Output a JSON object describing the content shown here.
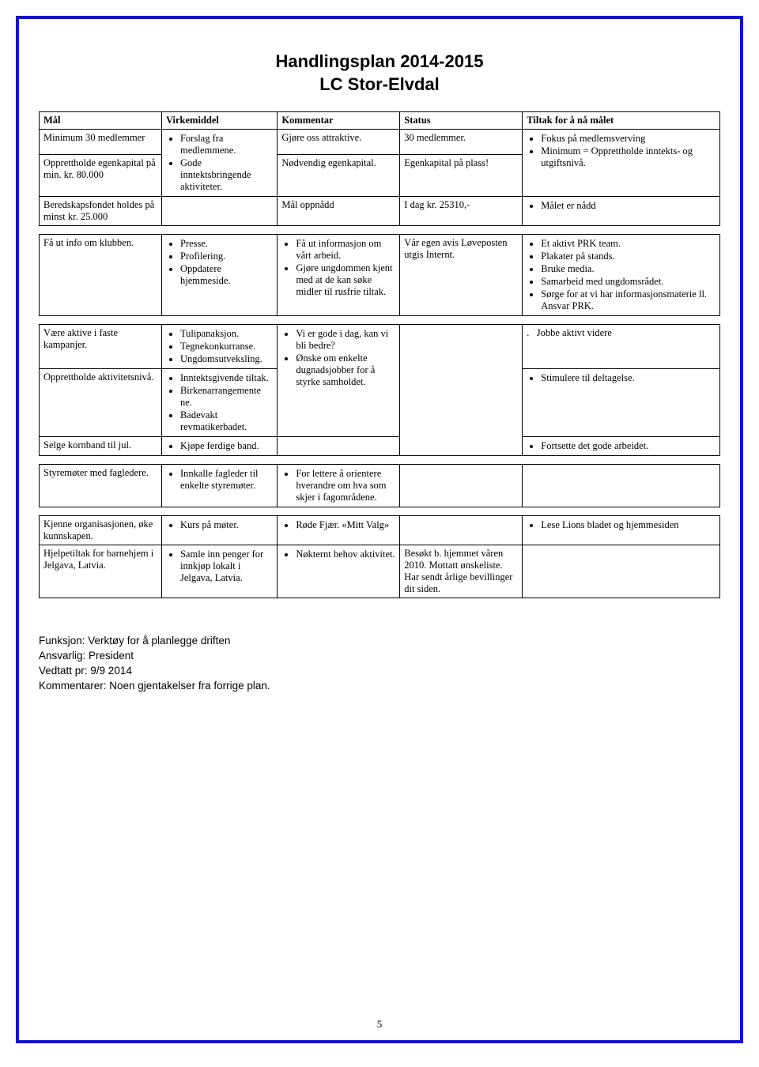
{
  "doc": {
    "titleLine1": "Handlingsplan 2014-2015",
    "titleLine2": "LC Stor-Elvdal",
    "pageNumber": "5"
  },
  "headers": {
    "mal": "Mål",
    "virkemiddel": "Virkemiddel",
    "kommentar": "Kommentar",
    "status": "Status",
    "tiltak": "Tiltak for å nå målet"
  },
  "t1": {
    "r1": {
      "mal": "Minimum 30 medlemmer",
      "v1": "Forslag fra medlemmene.",
      "kom": "Gjøre oss attraktive.",
      "stat": "30 medlemmer.",
      "t1": "Fokus på medlemsverving"
    },
    "r2": {
      "mal": "Opprettholde egenkapital på min. kr. 80.000",
      "v1": "Gode inntektsbringende aktiviteter.",
      "kom": "Nødvendig egenkapital.",
      "stat": "Egenkapital på plass!",
      "t1": "Minimum = Opprettholde inntekts- og utgiftsnivå."
    },
    "r3": {
      "mal": "Beredskapsfondet holdes på minst kr. 25.000",
      "kom": "Mål oppnådd",
      "stat": "I dag kr. 25310,-",
      "t1": "Målet er nådd"
    }
  },
  "t2": {
    "r1": {
      "mal": "Få ut info om klubben.",
      "v": [
        "Presse.",
        "Profilering.",
        "Oppdatere hjemmeside."
      ],
      "k": [
        "Få ut informasjon om vårt arbeid.",
        "Gjøre ungdommen kjent med at de kan søke midler til rusfrie tiltak."
      ],
      "stat": "Vår egen avis Løveposten utgis Internt.",
      "t": [
        "Et aktivt PRK team.",
        "Plakater på stands.",
        "Bruke media.",
        "Samarbeid med ungdomsrådet.",
        "Sørge for at vi har informasjonsmaterie ll. Ansvar PRK."
      ]
    }
  },
  "t3": {
    "r1": {
      "mal": "Være aktive i faste kampanjer.",
      "v": [
        "Tulipanaksjon.",
        "Tegnekonkurranse.",
        "Ungdomsutveksling."
      ],
      "k": [
        "Vi er gode i dag, kan vi bli bedre?"
      ],
      "tPrefix": ".",
      "t": "Jobbe aktivt videre"
    },
    "r2": {
      "mal": "Opprettholde aktivitetsnivå.",
      "v": [
        "Inntektsgivende tiltak.",
        "Birkenarrangemente ne.",
        "Badevakt revmatikerbadet."
      ],
      "k": [
        "Ønske om enkelte dugnadsjobber for å styrke samholdet."
      ],
      "t": [
        "Stimulere til deltagelse."
      ]
    },
    "r3": {
      "mal": "Selge kornband til jul.",
      "v": [
        "Kjøpe ferdige band."
      ],
      "t": [
        "Fortsette det gode arbeidet."
      ]
    }
  },
  "t4": {
    "r1": {
      "mal": "Styremøter med fagledere.",
      "v": [
        "Innkalle fagleder til enkelte styremøter."
      ],
      "k": [
        "For lettere å orientere hverandre om hva som skjer i fagområdene."
      ]
    }
  },
  "t5": {
    "r1": {
      "mal": "Kjenne organisasjonen, øke kunnskapen.",
      "v": [
        "Kurs på møter."
      ],
      "k": [
        "Røde Fjær. «Mitt Valg»"
      ],
      "t": [
        "Lese Lions bladet og hjemmesiden"
      ]
    },
    "r2": {
      "mal": "Hjelpetiltak for barnehjem i Jelgava, Latvia.",
      "v": [
        "Samle inn penger for innkjøp lokalt i Jelgava, Latvia."
      ],
      "k": [
        "Nøkternt behov aktivitet."
      ],
      "stat": "Besøkt b. hjemmet våren 2010. Mottatt ønskeliste. Har sendt årlige bevillinger dit siden."
    }
  },
  "footer": {
    "l1": "Funksjon: Verktøy for å planlegge driften",
    "l2": "Ansvarlig: President",
    "l3": "Vedtatt pr: 9/9 2014",
    "l4": "Kommentarer: Noen gjentakelser fra forrige plan."
  }
}
